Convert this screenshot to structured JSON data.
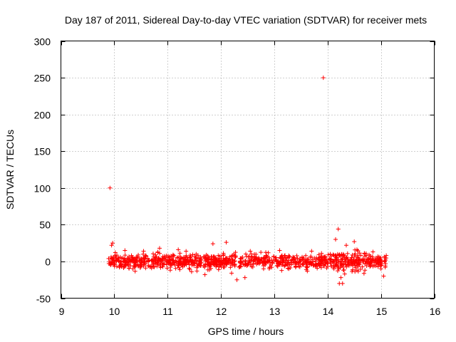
{
  "chart_data": {
    "type": "scatter",
    "title": "Day 187 of 2011, Sidereal Day-to-day VTEC variation (SDTVAR) for receiver mets",
    "xlabel": "GPS time / hours",
    "ylabel": "SDTVAR / TECUs",
    "xlim": [
      9,
      16
    ],
    "ylim": [
      -50,
      300
    ],
    "xticks": [
      "9",
      "10",
      "11",
      "12",
      "13",
      "14",
      "15",
      "16"
    ],
    "yticks": [
      "-50",
      "0",
      "50",
      "100",
      "150",
      "200",
      "250",
      "300"
    ],
    "grid": true,
    "marker": "plus",
    "color": "#ff0000",
    "series": [
      {
        "name": "SDTVAR",
        "points": [
          [
            9.92,
            100
          ],
          [
            13.92,
            250
          ],
          [
            9.9,
            -3
          ],
          [
            9.95,
            22
          ],
          [
            9.97,
            25
          ],
          [
            10.02,
            12
          ],
          [
            10.1,
            -8
          ],
          [
            10.2,
            15
          ],
          [
            10.35,
            -10
          ],
          [
            10.55,
            14
          ],
          [
            10.7,
            -9
          ],
          [
            10.85,
            18
          ],
          [
            11.05,
            -12
          ],
          [
            11.2,
            16
          ],
          [
            11.45,
            -14
          ],
          [
            11.55,
            -13
          ],
          [
            11.7,
            -18
          ],
          [
            11.85,
            24
          ],
          [
            11.95,
            8
          ],
          [
            12.1,
            26
          ],
          [
            12.2,
            -16
          ],
          [
            12.3,
            -25
          ],
          [
            12.45,
            -22
          ],
          [
            12.55,
            14
          ],
          [
            12.8,
            -10
          ],
          [
            13.1,
            15
          ],
          [
            13.4,
            -8
          ],
          [
            13.7,
            14
          ],
          [
            13.85,
            -6
          ],
          [
            14.05,
            10
          ],
          [
            14.15,
            30
          ],
          [
            14.2,
            44
          ],
          [
            14.22,
            -30
          ],
          [
            14.25,
            -22
          ],
          [
            14.28,
            -30
          ],
          [
            14.35,
            22
          ],
          [
            14.5,
            27
          ],
          [
            14.55,
            16
          ],
          [
            14.7,
            -12
          ],
          [
            14.85,
            13
          ],
          [
            15.0,
            -10
          ],
          [
            15.05,
            -20
          ],
          [
            15.08,
            -8
          ],
          [
            15.1,
            8
          ]
        ]
      }
    ],
    "data_range": {
      "x_start": 9.88,
      "x_end": 15.1,
      "gaps": [
        [
          12.28,
          12.34
        ]
      ],
      "noise_band": [
        -15,
        15
      ],
      "enhanced_variability_window": [
        14.1,
        14.7
      ]
    }
  }
}
